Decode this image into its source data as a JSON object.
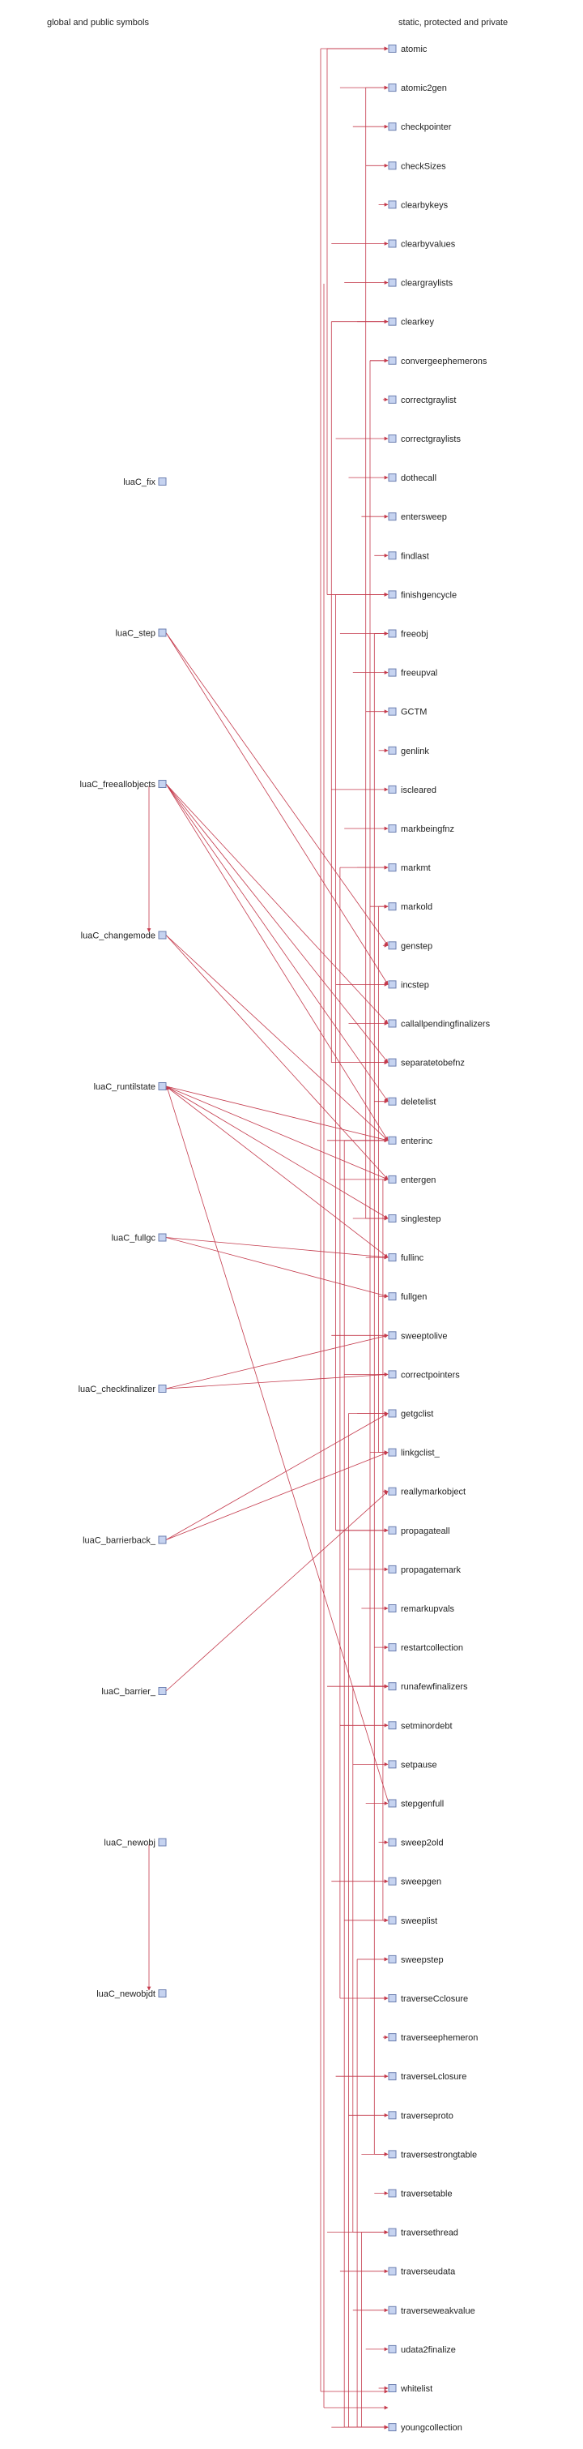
{
  "headers": {
    "left": "global and public symbols",
    "right": "static, protected and private"
  },
  "colors": {
    "edge": "#c43a4c",
    "node_fill": "#c6d3f0",
    "node_stroke": "#6c7fb0"
  },
  "public_symbols": [
    "luaC_fix",
    "luaC_step",
    "luaC_freeallobjects",
    "luaC_changemode",
    "luaC_runtilstate",
    "luaC_fullgc",
    "luaC_checkfinalizer",
    "luaC_barrierback_",
    "luaC_barrier_",
    "luaC_newobj",
    "luaC_newobjdt"
  ],
  "private_symbols": [
    "atomic",
    "atomic2gen",
    "checkpointer",
    "checkSizes",
    "clearbykeys",
    "clearbyvalues",
    "cleargraylists",
    "clearkey",
    "convergeephemerons",
    "correctgraylist",
    "correctgraylists",
    "dothecall",
    "entersweep",
    "findlast",
    "finishgencycle",
    "freeobj",
    "freeupval",
    "GCTM",
    "genlink",
    "iscleared",
    "markbeingfnz",
    "markmt",
    "markold",
    "genstep",
    "incstep",
    "callallpendingfinalizers",
    "separatetobefnz",
    "deletelist",
    "enterinc",
    "entergen",
    "singlestep",
    "fullinc",
    "fullgen",
    "sweeptolive",
    "correctpointers",
    "getgclist",
    "linkgclist_",
    "reallymarkobject",
    "propagateall",
    "propagatemark",
    "remarkupvals",
    "restartcollection",
    "runafewfinalizers",
    "setminordebt",
    "setpause",
    "stepgenfull",
    "sweep2old",
    "sweepgen",
    "sweeplist",
    "sweepstep",
    "traverseCclosure",
    "traverseephemeron",
    "traverseLclosure",
    "traverseproto",
    "traversestrongtable",
    "traversetable",
    "traversethread",
    "traverseudata",
    "traverseweakvalue",
    "udata2finalize",
    "whitelist",
    "youngcollection"
  ],
  "public_to_private_edges": [
    [
      "luaC_step",
      "genstep"
    ],
    [
      "luaC_step",
      "incstep"
    ],
    [
      "luaC_freeallobjects",
      "callallpendingfinalizers"
    ],
    [
      "luaC_freeallobjects",
      "separatetobefnz"
    ],
    [
      "luaC_freeallobjects",
      "deletelist"
    ],
    [
      "luaC_freeallobjects",
      "enterinc"
    ],
    [
      "luaC_changemode",
      "enterinc"
    ],
    [
      "luaC_changemode",
      "entergen"
    ],
    [
      "luaC_runtilstate",
      "enterinc"
    ],
    [
      "luaC_runtilstate",
      "entergen"
    ],
    [
      "luaC_runtilstate",
      "singlestep"
    ],
    [
      "luaC_runtilstate",
      "fullinc"
    ],
    [
      "luaC_fullgc",
      "fullinc"
    ],
    [
      "luaC_fullgc",
      "fullgen"
    ],
    [
      "luaC_checkfinalizer",
      "sweeptolive"
    ],
    [
      "luaC_checkfinalizer",
      "correctpointers"
    ],
    [
      "luaC_barrierback_",
      "getgclist"
    ],
    [
      "luaC_barrierback_",
      "linkgclist_"
    ],
    [
      "luaC_barrier_",
      "reallymarkobject"
    ],
    [
      "stepgenfull",
      "luaC_runtilstate"
    ]
  ],
  "public_to_public_edges": [
    [
      "luaC_freeallobjects",
      "luaC_changemode"
    ],
    [
      "luaC_newobj",
      "luaC_newobjdt"
    ]
  ]
}
